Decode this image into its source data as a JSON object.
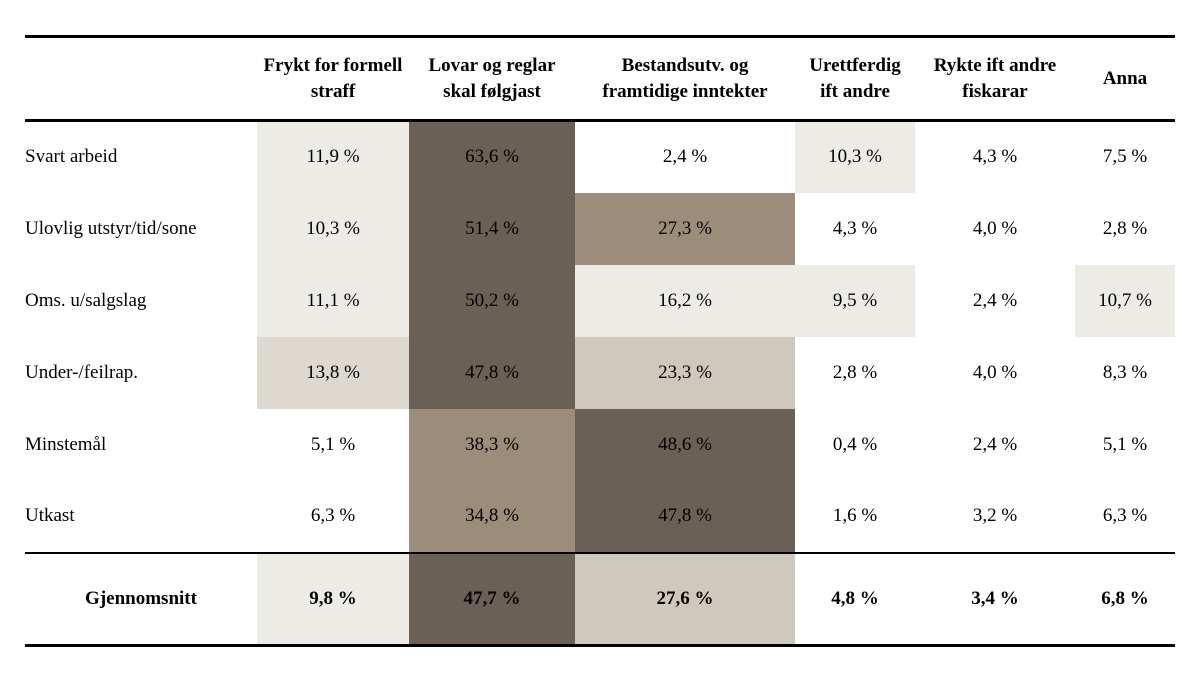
{
  "colors": {
    "none": "transparent",
    "light": "#EDEBE6",
    "mlight": "#DDD8D0",
    "tan": "#CFC8BD",
    "medium": "#9C8C7A",
    "dark": "#6B6055"
  },
  "table": {
    "columns": [
      "Frykt for formell straff",
      "Lovar og reglar skal følgjast",
      "Bestandsutv. og framtidige inntekter",
      "Urettferdig ift andre",
      "Rykte ift andre fiskarar",
      "Anna"
    ],
    "rows": [
      {
        "label": "Svart arbeid",
        "values": [
          "11,9 %",
          "63,6 %",
          "2,4 %",
          "10,3 %",
          "4,3 %",
          "7,5 %"
        ],
        "shades": [
          "light",
          "dark",
          "none",
          "light",
          "none",
          "none"
        ]
      },
      {
        "label": "Ulovlig utstyr/tid/sone",
        "values": [
          "10,3 %",
          "51,4 %",
          "27,3 %",
          "4,3 %",
          "4,0 %",
          "2,8 %"
        ],
        "shades": [
          "light",
          "dark",
          "medium",
          "none",
          "none",
          "none"
        ]
      },
      {
        "label": "Oms. u/salgslag",
        "values": [
          "11,1 %",
          "50,2 %",
          "16,2 %",
          "9,5 %",
          "2,4 %",
          "10,7 %"
        ],
        "shades": [
          "light",
          "dark",
          "light",
          "light",
          "none",
          "light"
        ]
      },
      {
        "label": "Under-/feilrap.",
        "values": [
          "13,8 %",
          "47,8 %",
          "23,3 %",
          "2,8 %",
          "4,0 %",
          "8,3 %"
        ],
        "shades": [
          "mlight",
          "dark",
          "tan",
          "none",
          "none",
          "none"
        ]
      },
      {
        "label": "Minstemål",
        "values": [
          "5,1 %",
          "38,3 %",
          "48,6 %",
          "0,4 %",
          "2,4 %",
          "5,1 %"
        ],
        "shades": [
          "none",
          "medium",
          "dark",
          "none",
          "none",
          "none"
        ]
      },
      {
        "label": "Utkast",
        "values": [
          "6,3 %",
          "34,8 %",
          "47,8 %",
          "1,6 %",
          "3,2 %",
          "6,3 %"
        ],
        "shades": [
          "none",
          "medium",
          "dark",
          "none",
          "none",
          "none"
        ]
      }
    ],
    "footer": {
      "label": "Gjennomsnitt",
      "values": [
        "9,8 %",
        "47,7 %",
        "27,6 %",
        "4,8 %",
        "3,4 %",
        "6,8 %"
      ],
      "shades": [
        "light",
        "dark",
        "tan",
        "none",
        "none",
        "none"
      ]
    }
  },
  "chart_data": {
    "type": "heatmap",
    "title": "",
    "columns": [
      "Frykt for formell straff",
      "Lovar og reglar skal følgjast",
      "Bestandsutv. og framtidige inntekter",
      "Urettferdig ift andre",
      "Rykte ift andre fiskarar",
      "Anna"
    ],
    "row_labels": [
      "Svart arbeid",
      "Ulovlig utstyr/tid/sone",
      "Oms. u/salgslag",
      "Under-/feilrap.",
      "Minstemål",
      "Utkast",
      "Gjennomsnitt"
    ],
    "values_percent": [
      [
        11.9,
        63.6,
        2.4,
        10.3,
        4.3,
        7.5
      ],
      [
        10.3,
        51.4,
        27.3,
        4.3,
        4.0,
        2.8
      ],
      [
        11.1,
        50.2,
        16.2,
        9.5,
        2.4,
        10.7
      ],
      [
        13.8,
        47.8,
        23.3,
        2.8,
        4.0,
        8.3
      ],
      [
        5.1,
        38.3,
        48.6,
        0.4,
        2.4,
        5.1
      ],
      [
        6.3,
        34.8,
        47.8,
        1.6,
        3.2,
        6.3
      ],
      [
        9.8,
        47.7,
        27.6,
        4.8,
        3.4,
        6.8
      ]
    ],
    "legend": "cell shading darkens with higher percentage",
    "grid": false
  }
}
